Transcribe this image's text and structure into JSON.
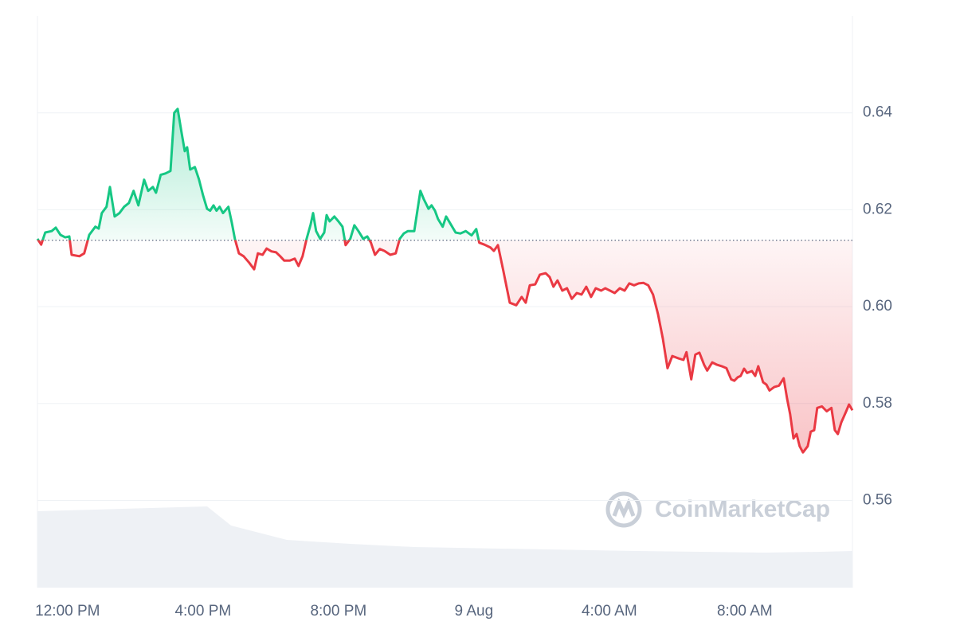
{
  "chart_data": {
    "type": "line",
    "watermark": "CoinMarketCap",
    "xlim": [
      11.11,
      35.18
    ],
    "xticks": [
      {
        "value": 12,
        "label": "12:00 PM"
      },
      {
        "value": 16,
        "label": "4:00 PM"
      },
      {
        "value": 20,
        "label": "8:00 PM"
      },
      {
        "value": 24,
        "label": "9 Aug"
      },
      {
        "value": 28,
        "label": "4:00 AM"
      },
      {
        "value": 32,
        "label": "8:00 AM"
      }
    ],
    "ylim": [
      0.542,
      0.66
    ],
    "yticks": [
      0.56,
      0.58,
      {
        "value": 0.6,
        "label": "0.60"
      },
      0.62,
      0.64
    ],
    "grid": true,
    "baseline": 0.6137,
    "colors": {
      "up": "#16c784",
      "down": "#ea3943"
    },
    "x": [
      11.11,
      11.22,
      11.34,
      11.53,
      11.65,
      11.79,
      11.93,
      12.05,
      12.12,
      12.35,
      12.49,
      12.64,
      12.82,
      12.92,
      13.01,
      13.15,
      13.25,
      13.39,
      13.53,
      13.67,
      13.81,
      13.95,
      14.09,
      14.26,
      14.38,
      14.52,
      14.61,
      14.75,
      14.89,
      15.04,
      15.15,
      15.25,
      15.36,
      15.46,
      15.53,
      15.62,
      15.76,
      15.88,
      16.0,
      16.12,
      16.21,
      16.31,
      16.4,
      16.49,
      16.59,
      16.75,
      16.85,
      16.94,
      17.06,
      17.2,
      17.36,
      17.51,
      17.62,
      17.76,
      17.88,
      18.02,
      18.16,
      18.28,
      18.4,
      18.56,
      18.71,
      18.82,
      18.94,
      19.06,
      19.18,
      19.25,
      19.34,
      19.46,
      19.58,
      19.65,
      19.74,
      19.88,
      20.0,
      20.12,
      20.21,
      20.35,
      20.47,
      20.59,
      20.73,
      20.85,
      20.96,
      21.08,
      21.22,
      21.36,
      21.53,
      21.69,
      21.81,
      21.93,
      22.05,
      22.24,
      22.33,
      22.42,
      22.52,
      22.66,
      22.75,
      22.85,
      22.94,
      23.08,
      23.18,
      23.29,
      23.46,
      23.6,
      23.76,
      23.93,
      24.07,
      24.16,
      24.31,
      24.49,
      24.59,
      24.71,
      24.87,
      25.06,
      25.25,
      25.41,
      25.53,
      25.65,
      25.81,
      25.95,
      26.12,
      26.24,
      26.35,
      26.47,
      26.61,
      26.75,
      26.89,
      27.04,
      27.18,
      27.32,
      27.46,
      27.6,
      27.76,
      27.88,
      28.02,
      28.16,
      28.31,
      28.45,
      28.59,
      28.73,
      28.87,
      29.01,
      29.15,
      29.29,
      29.44,
      29.58,
      29.72,
      29.86,
      30.05,
      30.19,
      30.28,
      30.42,
      30.54,
      30.66,
      30.8,
      30.89,
      31.04,
      31.18,
      31.32,
      31.46,
      31.6,
      31.69,
      31.79,
      31.88,
      31.98,
      32.07,
      32.21,
      32.31,
      32.4,
      32.54,
      32.64,
      32.73,
      32.87,
      33.01,
      33.15,
      33.25,
      33.34,
      33.44,
      33.53,
      33.62,
      33.72,
      33.86,
      33.95,
      34.05,
      34.14,
      34.28,
      34.42,
      34.56,
      34.66,
      34.75,
      34.85,
      34.99,
      35.08,
      35.18
    ],
    "values": [
      0.614,
      0.6128,
      0.6153,
      0.6156,
      0.6163,
      0.6148,
      0.6143,
      0.6145,
      0.6107,
      0.6104,
      0.611,
      0.6148,
      0.6165,
      0.6161,
      0.6193,
      0.6206,
      0.6247,
      0.6186,
      0.6193,
      0.6206,
      0.6214,
      0.6239,
      0.6209,
      0.6262,
      0.6239,
      0.6247,
      0.6235,
      0.6272,
      0.6275,
      0.628,
      0.64,
      0.6408,
      0.6362,
      0.6321,
      0.6329,
      0.6283,
      0.6288,
      0.6263,
      0.623,
      0.6202,
      0.6198,
      0.6209,
      0.6198,
      0.6206,
      0.6193,
      0.6206,
      0.6173,
      0.614,
      0.611,
      0.6104,
      0.6091,
      0.6077,
      0.611,
      0.6107,
      0.612,
      0.6114,
      0.6112,
      0.6104,
      0.6095,
      0.6095,
      0.6099,
      0.6084,
      0.6104,
      0.614,
      0.617,
      0.6193,
      0.6156,
      0.614,
      0.6153,
      0.6189,
      0.6176,
      0.6186,
      0.6176,
      0.6165,
      0.6127,
      0.614,
      0.6168,
      0.6156,
      0.614,
      0.6145,
      0.6132,
      0.6107,
      0.6119,
      0.6115,
      0.6107,
      0.611,
      0.614,
      0.6151,
      0.6156,
      0.6156,
      0.6198,
      0.6239,
      0.6222,
      0.6202,
      0.6209,
      0.6198,
      0.6181,
      0.6165,
      0.6186,
      0.6173,
      0.6153,
      0.6151,
      0.6156,
      0.6147,
      0.616,
      0.6132,
      0.6128,
      0.6122,
      0.6115,
      0.6127,
      0.6074,
      0.6008,
      0.6003,
      0.602,
      0.6008,
      0.6044,
      0.6046,
      0.6066,
      0.6069,
      0.6061,
      0.6041,
      0.6054,
      0.6033,
      0.6038,
      0.6016,
      0.6028,
      0.6025,
      0.6041,
      0.602,
      0.6038,
      0.6033,
      0.6038,
      0.6033,
      0.6028,
      0.6038,
      0.6033,
      0.6048,
      0.6044,
      0.6048,
      0.6049,
      0.6044,
      0.6025,
      0.5984,
      0.5934,
      0.5873,
      0.5898,
      0.5893,
      0.589,
      0.5906,
      0.585,
      0.5901,
      0.5905,
      0.588,
      0.5868,
      0.5885,
      0.588,
      0.5877,
      0.5873,
      0.585,
      0.5847,
      0.5854,
      0.5857,
      0.5872,
      0.5863,
      0.5867,
      0.5857,
      0.5877,
      0.5844,
      0.5839,
      0.5827,
      0.5834,
      0.5837,
      0.5852,
      0.581,
      0.5778,
      0.5728,
      0.5737,
      0.5712,
      0.5699,
      0.5712,
      0.5742,
      0.5745,
      0.5791,
      0.5794,
      0.5784,
      0.5791,
      0.5745,
      0.5737,
      0.5761,
      0.5783,
      0.5798,
      0.5786
    ]
  }
}
